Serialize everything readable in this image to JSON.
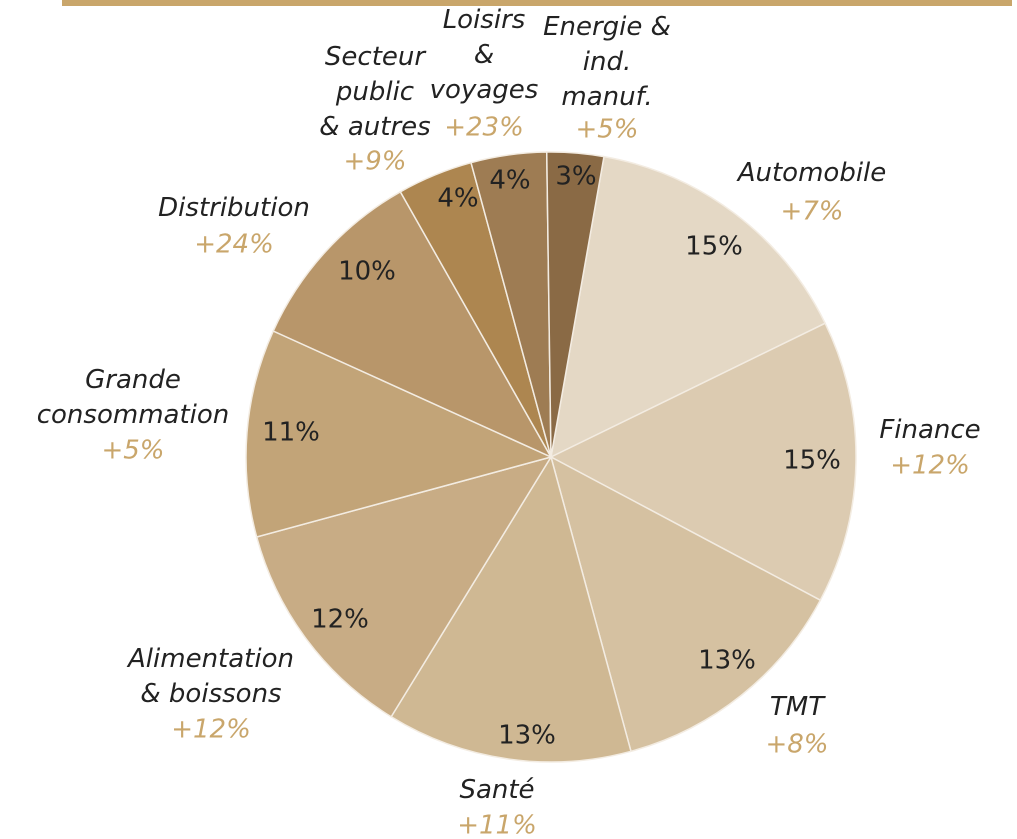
{
  "chart_data": {
    "type": "pie",
    "categories": [
      "Automobile",
      "Finance",
      "TMT",
      "Santé",
      "Alimentation\n& boissons",
      "Grande\nconsommation",
      "Distribution",
      "Secteur\npublic\n& autres",
      "Loisirs\n&\nvoyages",
      "Energie &\nind.\nmanuf."
    ],
    "values": [
      15,
      15,
      13,
      13,
      12,
      11,
      10,
      4,
      4,
      3
    ],
    "value_labels": [
      "15%",
      "15%",
      "13%",
      "13%",
      "12%",
      "11%",
      "10%",
      "4%",
      "4%",
      "3%"
    ],
    "growth": [
      "+7%",
      "+12%",
      "+8%",
      "+11%",
      "+12%",
      "+5%",
      "+24%",
      "+9%",
      "+23%",
      "+5%"
    ],
    "colors": [
      "#e4d8c5",
      "#dccbb1",
      "#d5c1a1",
      "#cfb893",
      "#c8ac85",
      "#c2a478",
      "#b8966a",
      "#ad8650",
      "#9e7c53",
      "#8a6a45"
    ]
  }
}
